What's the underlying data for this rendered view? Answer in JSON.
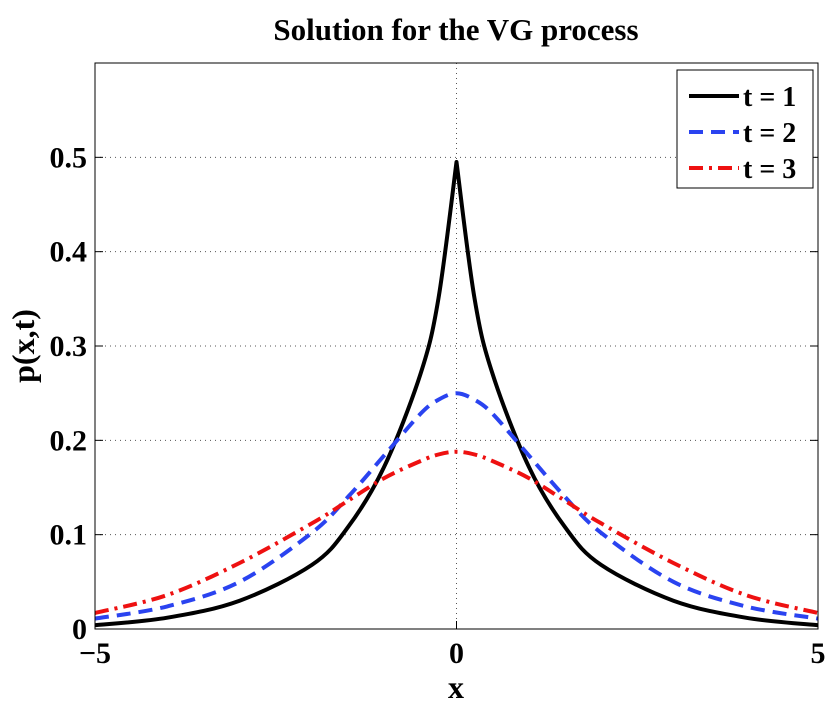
{
  "chart_data": {
    "type": "line",
    "title": "Solution for the VG process",
    "xlabel": "x",
    "ylabel": "p(x,t)",
    "xlim": [
      -5,
      5
    ],
    "ylim": [
      0,
      0.6
    ],
    "grid": true,
    "legend_position": "top-right",
    "x_ticks": [
      {
        "value": -5,
        "label": "−5"
      },
      {
        "value": 0,
        "label": "0"
      },
      {
        "value": 5,
        "label": "5"
      }
    ],
    "y_ticks": [
      {
        "value": 0,
        "label": "0"
      },
      {
        "value": 0.1,
        "label": "0.1"
      },
      {
        "value": 0.2,
        "label": "0.2"
      },
      {
        "value": 0.3,
        "label": "0.3"
      },
      {
        "value": 0.4,
        "label": "0.4"
      },
      {
        "value": 0.5,
        "label": "0.5"
      }
    ],
    "x": [
      -5,
      -4,
      -3,
      -2,
      -1.5,
      -1,
      -0.5,
      -0.25,
      0,
      0.25,
      0.5,
      1,
      1.5,
      2,
      3,
      4,
      5
    ],
    "series": [
      {
        "name": "t = 1",
        "color": "#000000",
        "dash": "solid",
        "values": [
          0.004,
          0.012,
          0.03,
          0.068,
          0.108,
          0.172,
          0.27,
          0.35,
          0.495,
          0.35,
          0.27,
          0.172,
          0.108,
          0.068,
          0.03,
          0.012,
          0.004
        ]
      },
      {
        "name": "t = 2",
        "color": "#2a43f0",
        "dash": "dashed",
        "values": [
          0.011,
          0.024,
          0.05,
          0.102,
          0.14,
          0.184,
          0.228,
          0.243,
          0.25,
          0.243,
          0.228,
          0.184,
          0.14,
          0.102,
          0.05,
          0.024,
          0.011
        ]
      },
      {
        "name": "t = 3",
        "color": "#ee1111",
        "dash": "dashdot",
        "values": [
          0.017,
          0.036,
          0.07,
          0.112,
          0.136,
          0.16,
          0.178,
          0.185,
          0.188,
          0.185,
          0.178,
          0.16,
          0.136,
          0.112,
          0.07,
          0.036,
          0.017
        ]
      }
    ]
  }
}
